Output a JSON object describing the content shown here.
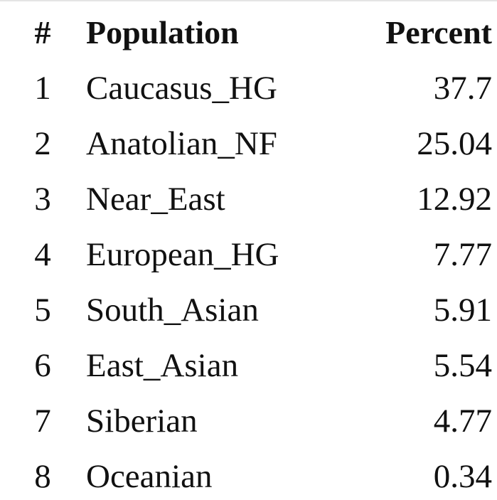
{
  "table": {
    "headers": {
      "num": "#",
      "population": "Population",
      "percent": "Percent"
    },
    "rows": [
      {
        "num": "1",
        "population": "Caucasus_HG",
        "percent": "37.7"
      },
      {
        "num": "2",
        "population": "Anatolian_NF",
        "percent": "25.04"
      },
      {
        "num": "3",
        "population": "Near_East",
        "percent": "12.92"
      },
      {
        "num": "4",
        "population": "European_HG",
        "percent": "7.77"
      },
      {
        "num": "5",
        "population": "South_Asian",
        "percent": "5.91"
      },
      {
        "num": "6",
        "population": "East_Asian",
        "percent": "5.54"
      },
      {
        "num": "7",
        "population": "Siberian",
        "percent": "4.77"
      },
      {
        "num": "8",
        "population": "Oceanian",
        "percent": "0.34"
      }
    ]
  }
}
